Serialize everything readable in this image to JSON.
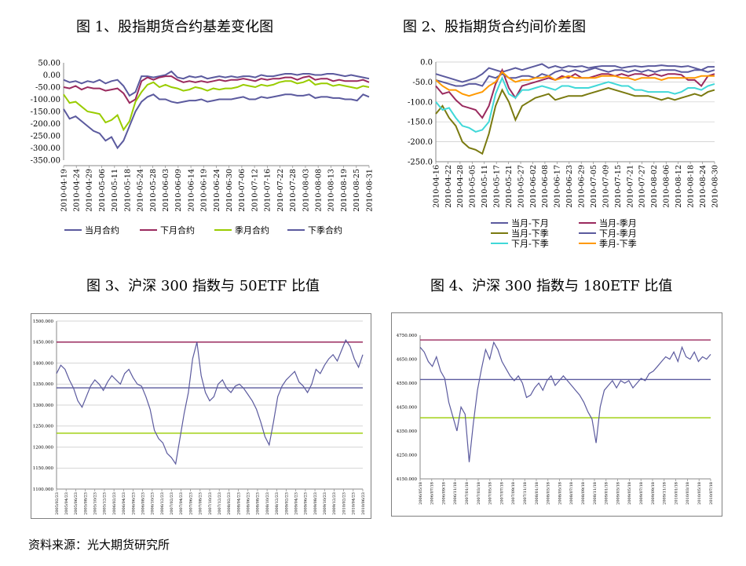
{
  "source": "资料来源：光大期货研究所",
  "colors": {
    "purple": "#5b5a9e",
    "maroon": "#9a2a5e",
    "lime": "#99cc00",
    "olive": "#7a7a10",
    "cyan": "#40d8d8",
    "orange": "#ff9900",
    "grid": "#c8c8c8"
  },
  "charts": [
    {
      "title": "图 1、股指期货合约基差变化图",
      "chart_data": {
        "type": "line",
        "ylim": [
          -350,
          50
        ],
        "yticks": [
          "50.00",
          "0.00",
          "-50.00",
          "-100.00",
          "-150.00",
          "-200.00",
          "-250.00",
          "-300.00",
          "-350.00"
        ],
        "xticks": [
          "2010-04-19",
          "2010-04-24",
          "2010-04-29",
          "2010-05-06",
          "2010-05-11",
          "2010-05-18",
          "2010-05-24",
          "2010-05-28",
          "2010-06-03",
          "2010-06-09",
          "2010-06-14",
          "2010-06-19",
          "2010-06-24",
          "2010-06-30",
          "2010-07-06",
          "2010-07-12",
          "2010-07-16",
          "2010-07-22",
          "2010-07-28",
          "2010-08-03",
          "2010-08-08",
          "2010-08-13",
          "2010-08-19",
          "2010-08-25",
          "2010-08-31"
        ],
        "series": [
          {
            "name": "当月合约",
            "color": "purple",
            "values": [
              -20,
              -30,
              -25,
              -35,
              -25,
              -30,
              -20,
              -35,
              -25,
              -20,
              -45,
              -85,
              -70,
              -5,
              -5,
              -10,
              -5,
              0,
              15,
              -10,
              -15,
              -5,
              -10,
              -5,
              -15,
              -10,
              -5,
              -10,
              -5,
              -10,
              -5,
              -5,
              -10,
              0,
              -5,
              -5,
              0,
              5,
              5,
              0,
              5,
              5,
              0,
              0,
              5,
              5,
              0,
              -5,
              0,
              -5,
              -10,
              -15
            ]
          },
          {
            "name": "下月合约",
            "color": "maroon",
            "values": [
              -50,
              -55,
              -45,
              -60,
              -50,
              -55,
              -55,
              -65,
              -60,
              -55,
              -75,
              -115,
              -100,
              -25,
              -10,
              -20,
              -10,
              -5,
              -5,
              -20,
              -30,
              -25,
              -30,
              -25,
              -30,
              -25,
              -20,
              -25,
              -20,
              -20,
              -15,
              -20,
              -25,
              -15,
              -20,
              -15,
              -15,
              -10,
              -10,
              -20,
              -10,
              -5,
              -20,
              -15,
              -15,
              -25,
              -20,
              -25,
              -25,
              -25,
              -20,
              -30
            ]
          },
          {
            "name": "季月合约",
            "color": "lime",
            "values": [
              -80,
              -115,
              -110,
              -130,
              -150,
              -155,
              -160,
              -195,
              -185,
              -165,
              -225,
              -190,
              -110,
              -70,
              -40,
              -30,
              -50,
              -40,
              -50,
              -55,
              -65,
              -60,
              -50,
              -55,
              -65,
              -55,
              -60,
              -55,
              -55,
              -50,
              -40,
              -45,
              -50,
              -40,
              -45,
              -40,
              -30,
              -25,
              -25,
              -35,
              -30,
              -20,
              -40,
              -35,
              -35,
              -45,
              -40,
              -45,
              -50,
              -55,
              -45,
              -50
            ]
          },
          {
            "name": "下季合约",
            "color": "purple",
            "values": [
              -140,
              -180,
              -170,
              -190,
              -210,
              -230,
              -240,
              -270,
              -255,
              -300,
              -270,
              -210,
              -150,
              -110,
              -90,
              -80,
              -100,
              -100,
              -110,
              -115,
              -110,
              -105,
              -105,
              -100,
              -110,
              -105,
              -100,
              -100,
              -100,
              -95,
              -90,
              -100,
              -100,
              -90,
              -95,
              -90,
              -85,
              -80,
              -80,
              -85,
              -85,
              -80,
              -95,
              -90,
              -90,
              -95,
              -95,
              -100,
              -100,
              -105,
              -80,
              -90
            ]
          }
        ]
      }
    },
    {
      "title": "图 2、股指期货合约间价差图",
      "chart_data": {
        "type": "line",
        "ylim": [
          -250,
          0
        ],
        "yticks": [
          "0.0",
          "-50.0",
          "-100.0",
          "-150.0",
          "-200.0",
          "-250.0"
        ],
        "xticks": [
          "2010-04-16",
          "2010-04-22",
          "2010-04-28",
          "2010-05-05",
          "2010-05-11",
          "2010-05-17",
          "2010-05-21",
          "2010-05-27",
          "2010-06-02",
          "2010-06-08",
          "2010-06-17",
          "2010-06-23",
          "2010-06-29",
          "2010-07-05",
          "2010-07-09",
          "2010-07-15",
          "2010-07-21",
          "2010-07-27",
          "2010-08-02",
          "2010-08-06",
          "2010-08-12",
          "2010-08-18",
          "2010-08-24",
          "2010-08-30"
        ],
        "series": [
          {
            "name": "当月-下月",
            "color": "purple",
            "values": [
              -30,
              -35,
              -40,
              -45,
              -50,
              -45,
              -40,
              -30,
              -15,
              -20,
              -25,
              -20,
              -15,
              -20,
              -15,
              -10,
              -5,
              -15,
              -10,
              -15,
              -10,
              -12,
              -10,
              -15,
              -12,
              -10,
              -10,
              -10,
              -15,
              -12,
              -10,
              -12,
              -10,
              -10,
              -8,
              -10,
              -10,
              -12,
              -10,
              -15,
              -20,
              -12,
              -12
            ]
          },
          {
            "name": "当月-季月",
            "color": "maroon",
            "values": [
              -60,
              -80,
              -75,
              -95,
              -110,
              -115,
              -120,
              -140,
              -110,
              -55,
              -20,
              -65,
              -90,
              -60,
              -55,
              -50,
              -45,
              -40,
              -45,
              -35,
              -40,
              -30,
              -40,
              -40,
              -35,
              -30,
              -30,
              -35,
              -30,
              -35,
              -30,
              -30,
              -35,
              -30,
              -35,
              -30,
              -30,
              -32,
              -45,
              -45,
              -60,
              -35,
              -30
            ]
          },
          {
            "name": "当月-下季",
            "color": "olive",
            "values": [
              -130,
              -110,
              -140,
              -160,
              -200,
              -215,
              -220,
              -230,
              -180,
              -110,
              -70,
              -100,
              -145,
              -110,
              -100,
              -90,
              -85,
              -80,
              -95,
              -90,
              -85,
              -85,
              -85,
              -80,
              -75,
              -70,
              -65,
              -70,
              -75,
              -80,
              -85,
              -85,
              -85,
              -90,
              -95,
              -90,
              -95,
              -90,
              -85,
              -80,
              -85,
              -75,
              -70
            ]
          },
          {
            "name": "下月-季月",
            "color": "purple",
            "values": [
              -45,
              -50,
              -55,
              -60,
              -60,
              -55,
              -55,
              -60,
              -35,
              -40,
              -30,
              -40,
              -40,
              -35,
              -35,
              -40,
              -30,
              -35,
              -25,
              -20,
              -25,
              -20,
              -25,
              -20,
              -15,
              -20,
              -25,
              -20,
              -20,
              -25,
              -20,
              -25,
              -20,
              -25,
              -20,
              -20,
              -20,
              -25,
              -25,
              -20,
              -20,
              -25,
              -20
            ]
          },
          {
            "name": "下月-下季",
            "color": "cyan",
            "values": [
              -100,
              -120,
              -115,
              -140,
              -160,
              -165,
              -175,
              -170,
              -150,
              -80,
              -40,
              -80,
              -90,
              -70,
              -70,
              -65,
              -60,
              -65,
              -70,
              -60,
              -60,
              -65,
              -65,
              -65,
              -60,
              -55,
              -50,
              -55,
              -60,
              -60,
              -70,
              -70,
              -75,
              -75,
              -75,
              -75,
              -80,
              -75,
              -65,
              -65,
              -70,
              -60,
              -55
            ]
          },
          {
            "name": "季月-下季",
            "color": "orange",
            "values": [
              -45,
              -60,
              -70,
              -70,
              -80,
              -85,
              -80,
              -75,
              -60,
              -50,
              -25,
              -40,
              -50,
              -45,
              -45,
              -40,
              -40,
              -35,
              -45,
              -40,
              -35,
              -40,
              -40,
              -40,
              -40,
              -35,
              -35,
              -35,
              -40,
              -40,
              -45,
              -40,
              -40,
              -40,
              -45,
              -40,
              -40,
              -40,
              -40,
              -40,
              -35,
              -35,
              -35
            ]
          }
        ]
      }
    },
    {
      "title": "图 3、沪深 300 指数与 50ETF 比值",
      "chart_data": {
        "type": "line",
        "ylim": [
          1100,
          1500
        ],
        "yticks": [
          "1500.000",
          "1450.000",
          "1400.000",
          "1350.000",
          "1300.000",
          "1250.000",
          "1200.000",
          "1150.000",
          "1100.000"
        ],
        "xticks": [
          "2005/02/23",
          "2005/04/23",
          "2005/06/23",
          "2005/08/23",
          "2005/10/23",
          "2005/12/23",
          "2006/02/23",
          "2006/04/23",
          "2006/06/23",
          "2006/08/23",
          "2006/10/23",
          "2006/12/23",
          "2007/02/23",
          "2007/04/23",
          "2007/06/23",
          "2007/08/23",
          "2007/10/23",
          "2007/12/23",
          "2008/02/23",
          "2008/04/23",
          "2008/06/23",
          "2008/08/23",
          "2008/10/23",
          "2008/12/23",
          "2009/02/23",
          "2009/04/23",
          "2009/06/23",
          "2009/08/23",
          "2009/10/23",
          "2009/12/23",
          "2010/02/23",
          "2010/04/23",
          "2010/06/23"
        ],
        "reference_lines": [
          {
            "value": 1450,
            "color": "maroon"
          },
          {
            "value": 1341,
            "color": "purple"
          },
          {
            "value": 1233,
            "color": "lime"
          }
        ],
        "series": [
          {
            "name": "",
            "color": "purple",
            "values": [
              1375,
              1395,
              1385,
              1360,
              1340,
              1310,
              1295,
              1320,
              1345,
              1360,
              1350,
              1335,
              1355,
              1370,
              1360,
              1350,
              1375,
              1385,
              1365,
              1350,
              1345,
              1320,
              1290,
              1240,
              1220,
              1210,
              1185,
              1175,
              1160,
              1220,
              1280,
              1330,
              1410,
              1450,
              1370,
              1330,
              1310,
              1320,
              1350,
              1360,
              1340,
              1330,
              1345,
              1350,
              1340,
              1325,
              1310,
              1290,
              1260,
              1225,
              1205,
              1260,
              1320,
              1345,
              1360,
              1370,
              1380,
              1355,
              1345,
              1330,
              1350,
              1385,
              1375,
              1395,
              1410,
              1420,
              1405,
              1430,
              1455,
              1440,
              1410,
              1390,
              1420
            ]
          }
        ]
      }
    },
    {
      "title": "图 4、沪深 300 指数与 180ETF 比值",
      "chart_data": {
        "type": "line",
        "ylim": [
          4150,
          4750
        ],
        "yticks": [
          "4750.000",
          "4650.000",
          "4550.000",
          "4450.000",
          "4350.000",
          "4250.000",
          "4150.000"
        ],
        "xticks": [
          "2006/05/18",
          "2006/07/18",
          "2006/09/18",
          "2006/11/18",
          "2007/01/18",
          "2007/03/18",
          "2007/05/18",
          "2007/07/18",
          "2007/09/18",
          "2007/11/18",
          "2008/01/18",
          "2008/03/18",
          "2008/05/18",
          "2008/07/18",
          "2008/09/18",
          "2008/11/18",
          "2009/01/18",
          "2009/03/18",
          "2009/05/18",
          "2009/07/18",
          "2009/09/18",
          "2009/11/18",
          "2010/01/18",
          "2010/03/18",
          "2010/05/18",
          "2010/07/18"
        ],
        "reference_lines": [
          {
            "value": 4730,
            "color": "maroon"
          },
          {
            "value": 4565,
            "color": "purple"
          },
          {
            "value": 4405,
            "color": "lime"
          }
        ],
        "series": [
          {
            "name": "",
            "color": "purple",
            "values": [
              4700,
              4680,
              4640,
              4620,
              4660,
              4600,
              4570,
              4470,
              4410,
              4350,
              4450,
              4420,
              4220,
              4380,
              4520,
              4610,
              4690,
              4650,
              4720,
              4690,
              4640,
              4610,
              4580,
              4560,
              4580,
              4550,
              4490,
              4500,
              4530,
              4550,
              4520,
              4560,
              4580,
              4540,
              4560,
              4580,
              4560,
              4540,
              4520,
              4500,
              4470,
              4430,
              4400,
              4300,
              4450,
              4520,
              4540,
              4560,
              4530,
              4560,
              4550,
              4560,
              4530,
              4550,
              4570,
              4560,
              4590,
              4600,
              4620,
              4640,
              4660,
              4650,
              4680,
              4640,
              4700,
              4660,
              4650,
              4680,
              4640,
              4660,
              4650,
              4670
            ]
          }
        ]
      }
    }
  ]
}
